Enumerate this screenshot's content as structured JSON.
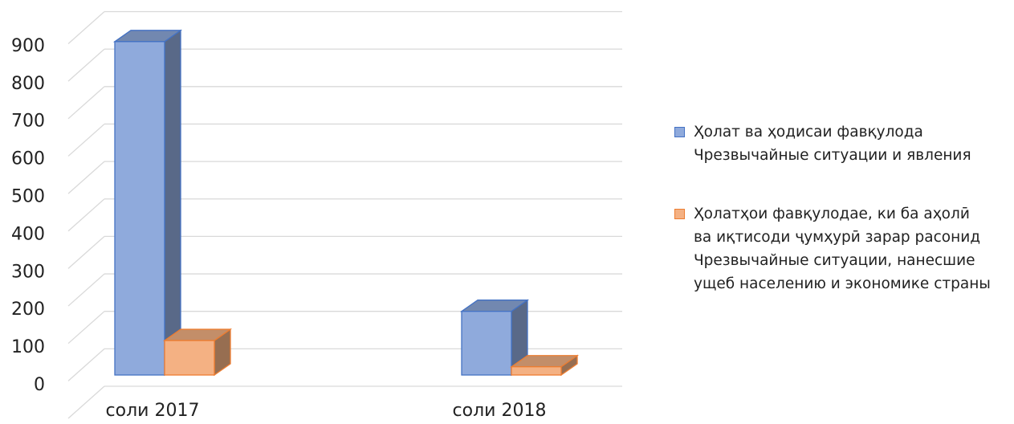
{
  "chart_data": {
    "type": "bar3d",
    "categories": [
      "соли 2017",
      "соли 2018"
    ],
    "series": [
      {
        "name": "Ҳолат ва ҳодисаи фавқулода\nЧрезвычайные ситуации и явления",
        "color": "#8faadc",
        "values": [
          890,
          170
        ]
      },
      {
        "name": "Ҳолатҳои фавқулодае, ки ба аҳолӣ\nва иқтисоди ҷумҳурӣ зарар расонид\nЧрезвычайные ситуации, нанесшие\nущеб населению и экономике страны",
        "color": "#f4b183",
        "values": [
          92,
          22
        ]
      }
    ],
    "ylim": [
      0,
      1000
    ],
    "yticks": [
      0,
      100,
      200,
      300,
      400,
      500,
      600,
      700,
      800,
      900
    ],
    "grid": true,
    "legend": "right"
  }
}
